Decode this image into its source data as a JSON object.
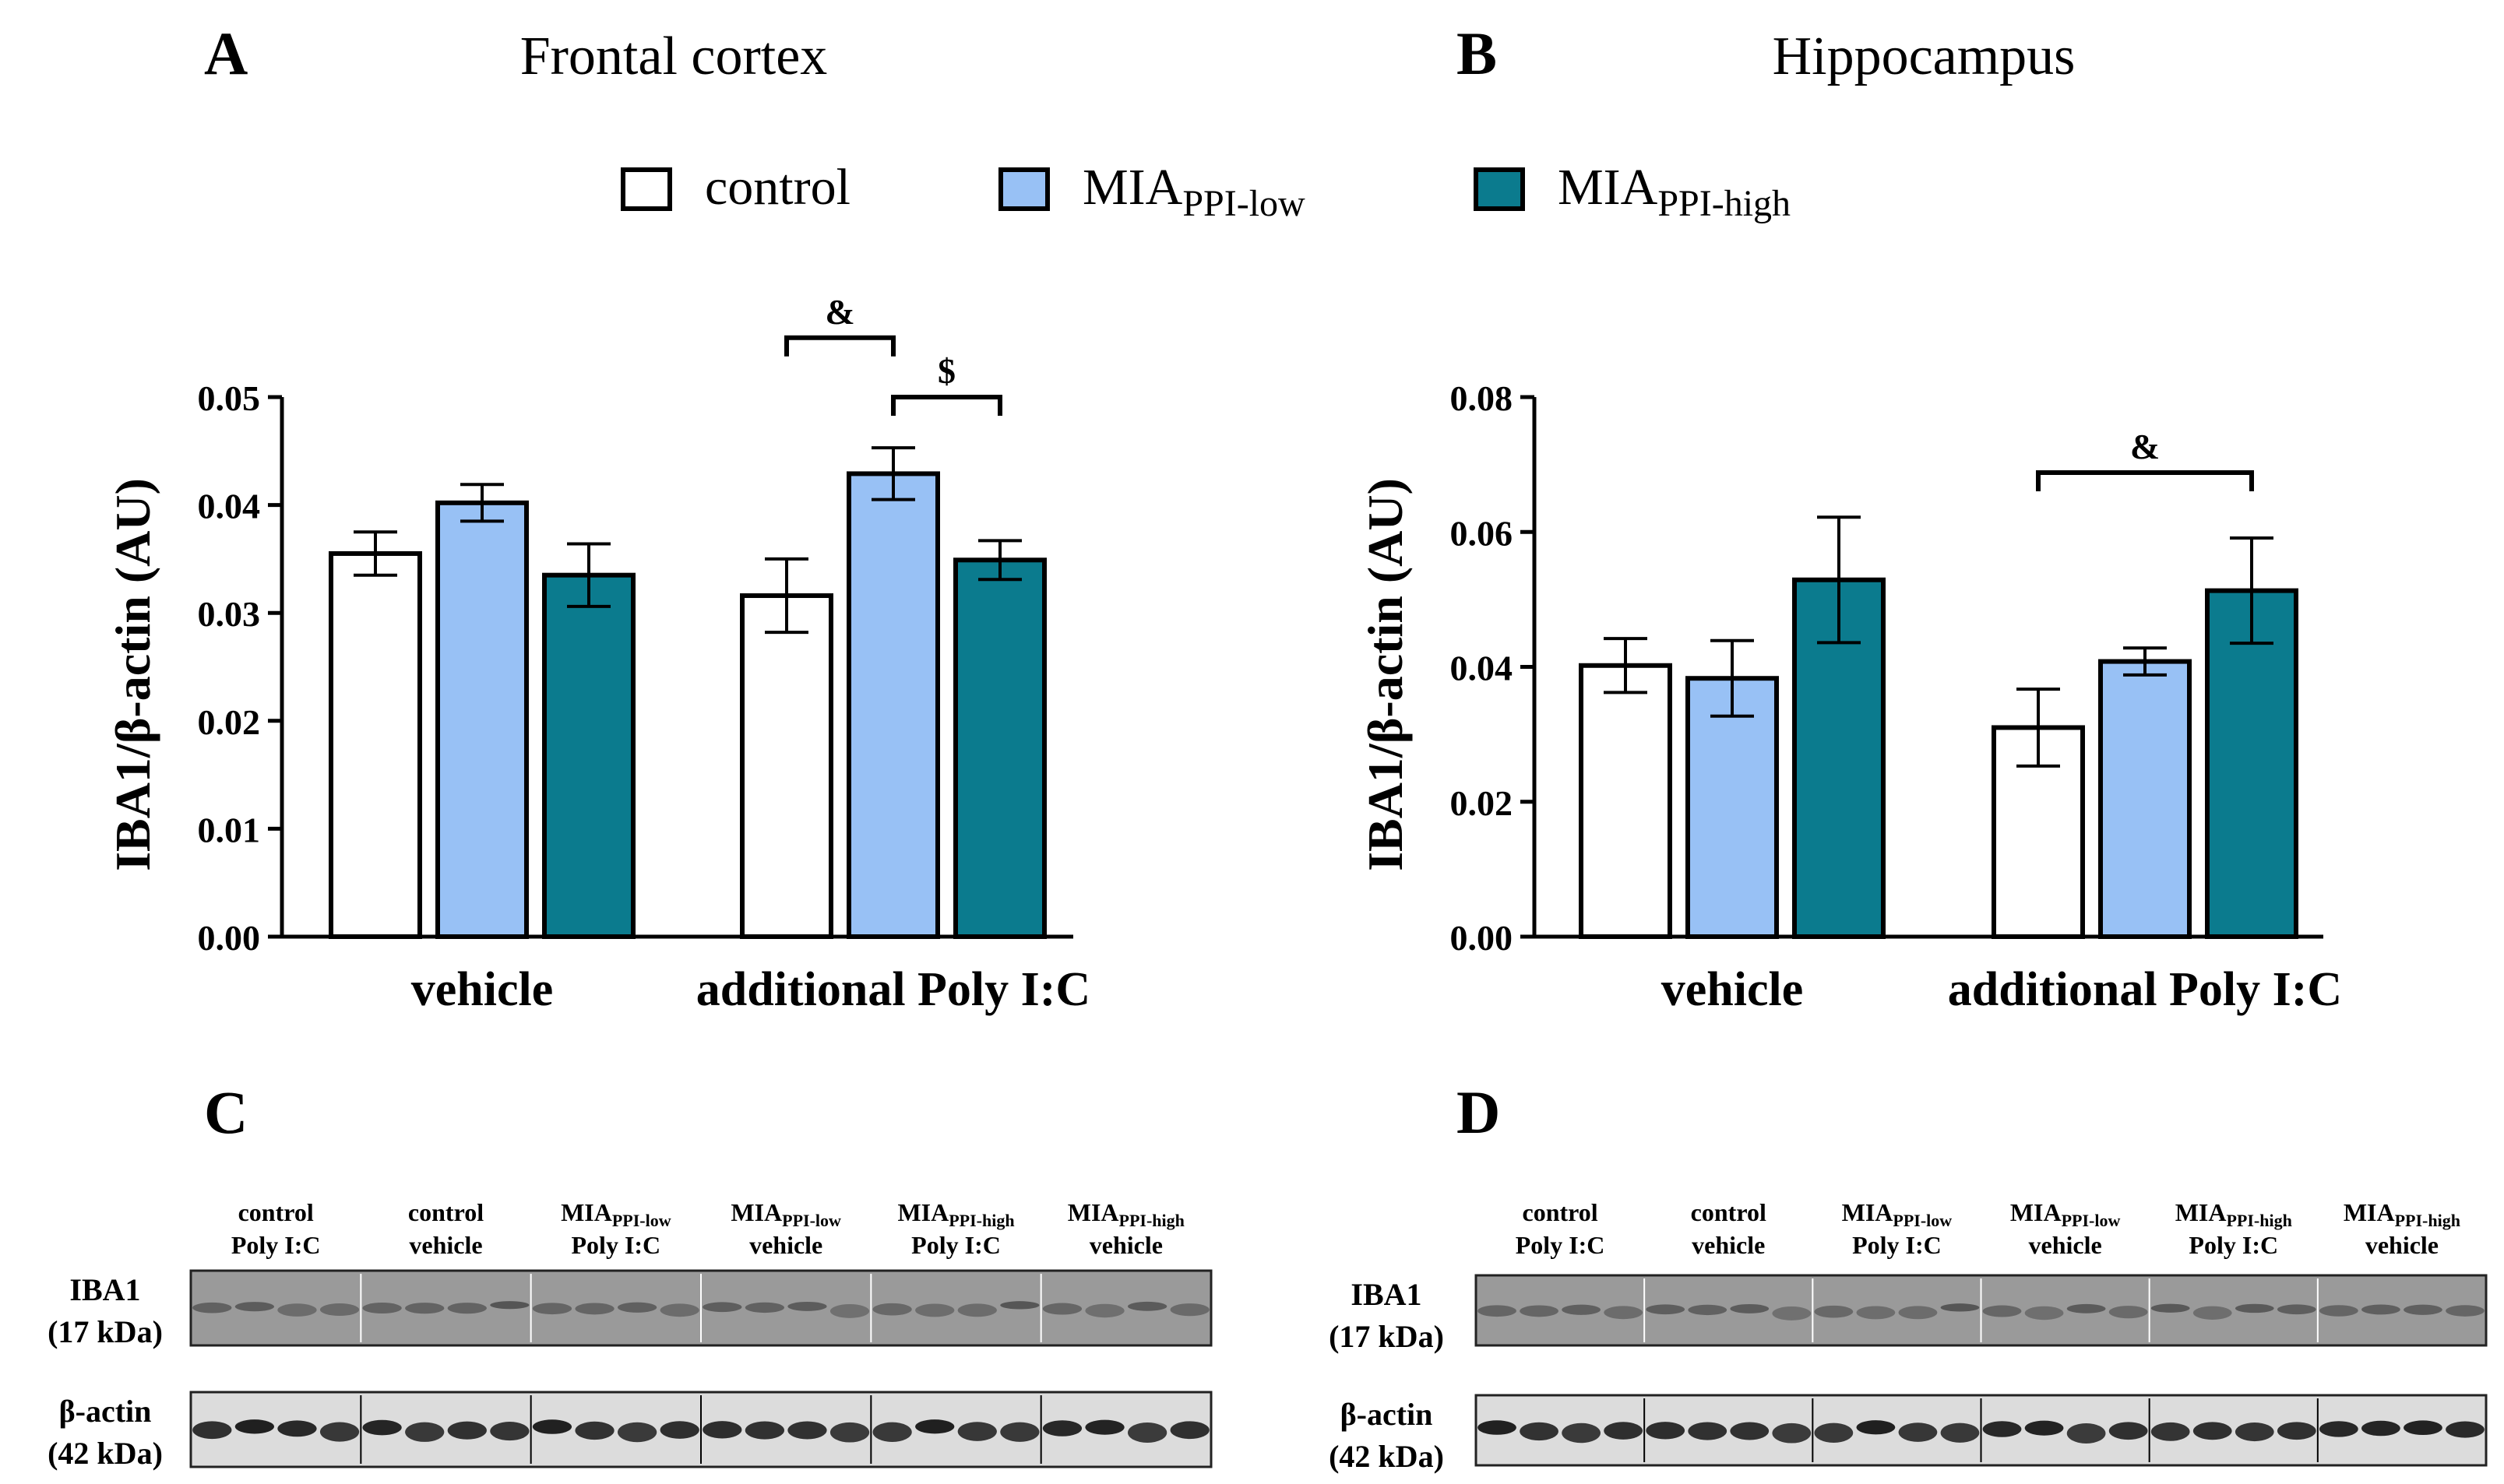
{
  "panels": {
    "a": {
      "letter": "A",
      "title": "Frontal cortex"
    },
    "b": {
      "letter": "B",
      "title": "Hippocampus"
    },
    "c": {
      "letter": "C"
    },
    "d": {
      "letter": "D"
    }
  },
  "legend": [
    {
      "main": "control",
      "sub": "",
      "color": "#ffffff"
    },
    {
      "main": "MIA",
      "sub": "PPI-low",
      "color": "#98c1f5"
    },
    {
      "main": "MIA",
      "sub": "PPI-high",
      "color": "#0b7b8e"
    }
  ],
  "chart_data": [
    {
      "type": "bar",
      "title": "Frontal cortex",
      "ylabel": "IBA1/β-actin (AU)",
      "xlabel": "",
      "ylim": [
        0,
        0.05
      ],
      "yticks": [
        "0.00",
        "0.01",
        "0.02",
        "0.03",
        "0.04",
        "0.05"
      ],
      "categories": [
        "vehicle",
        "additional Poly I:C"
      ],
      "series": [
        {
          "name": "control",
          "color": "#ffffff",
          "values": [
            0.0355,
            0.0316
          ],
          "errors": [
            0.002,
            0.0034
          ]
        },
        {
          "name": "MIA PPI-low",
          "color": "#98c1f5",
          "values": [
            0.0402,
            0.0429
          ],
          "errors": [
            0.0017,
            0.0024
          ]
        },
        {
          "name": "MIA PPI-high",
          "color": "#0b7b8e",
          "values": [
            0.0335,
            0.0349
          ],
          "errors": [
            0.0029,
            0.0018
          ]
        }
      ],
      "annotations": [
        {
          "label": "&",
          "group": 1,
          "from": 0,
          "to": 1,
          "level": 0.0555
        },
        {
          "label": "$",
          "group": 1,
          "from": 1,
          "to": 2,
          "level": 0.05
        }
      ]
    },
    {
      "type": "bar",
      "title": "Hippocampus",
      "ylabel": "IBA1/β-actin (AU)",
      "xlabel": "",
      "ylim": [
        0,
        0.08
      ],
      "yticks": [
        "0.00",
        "0.02",
        "0.04",
        "0.06",
        "0.08"
      ],
      "categories": [
        "vehicle",
        "additional Poly I:C"
      ],
      "series": [
        {
          "name": "control",
          "color": "#ffffff",
          "values": [
            0.0402,
            0.031
          ],
          "errors": [
            0.004,
            0.0057
          ]
        },
        {
          "name": "MIA PPI-low",
          "color": "#98c1f5",
          "values": [
            0.0383,
            0.0408
          ],
          "errors": [
            0.0056,
            0.002
          ]
        },
        {
          "name": "MIA PPI-high",
          "color": "#0b7b8e",
          "values": [
            0.0529,
            0.0513
          ],
          "errors": [
            0.0093,
            0.0078
          ]
        }
      ],
      "annotations": [
        {
          "label": "&",
          "group": 1,
          "from": 0,
          "to": 2,
          "level": 0.0688
        }
      ]
    }
  ],
  "blots": [
    {
      "groups": [
        {
          "main1": "control",
          "sub1": "",
          "line2": "Poly I:C"
        },
        {
          "main1": "control",
          "sub1": "",
          "line2": "vehicle"
        },
        {
          "main1": "MIA",
          "sub1": "PPI-low",
          "line2": "Poly I:C"
        },
        {
          "main1": "MIA",
          "sub1": "PPI-low",
          "line2": "vehicle"
        },
        {
          "main1": "MIA",
          "sub1": "PPI-high",
          "line2": "Poly I:C"
        },
        {
          "main1": "MIA",
          "sub1": "PPI-high",
          "line2": "vehicle"
        }
      ],
      "rows": [
        {
          "label": "IBA1",
          "size": "(17 kDa)",
          "intensity": 0.35
        },
        {
          "label": "β-actin",
          "size": "(42 kDa)",
          "intensity": 0.95
        }
      ]
    },
    {
      "groups": [
        {
          "main1": "control",
          "sub1": "",
          "line2": "Poly I:C"
        },
        {
          "main1": "control",
          "sub1": "",
          "line2": "vehicle"
        },
        {
          "main1": "MIA",
          "sub1": "PPI-low",
          "line2": "Poly I:C"
        },
        {
          "main1": "MIA",
          "sub1": "PPI-low",
          "line2": "vehicle"
        },
        {
          "main1": "MIA",
          "sub1": "PPI-high",
          "line2": "Poly I:C"
        },
        {
          "main1": "MIA",
          "sub1": "PPI-high",
          "line2": "vehicle"
        }
      ],
      "rows": [
        {
          "label": "IBA1",
          "size": "(17 kDa)",
          "intensity": 0.4
        },
        {
          "label": "β-actin",
          "size": "(42 kDa)",
          "intensity": 0.95
        }
      ]
    }
  ]
}
